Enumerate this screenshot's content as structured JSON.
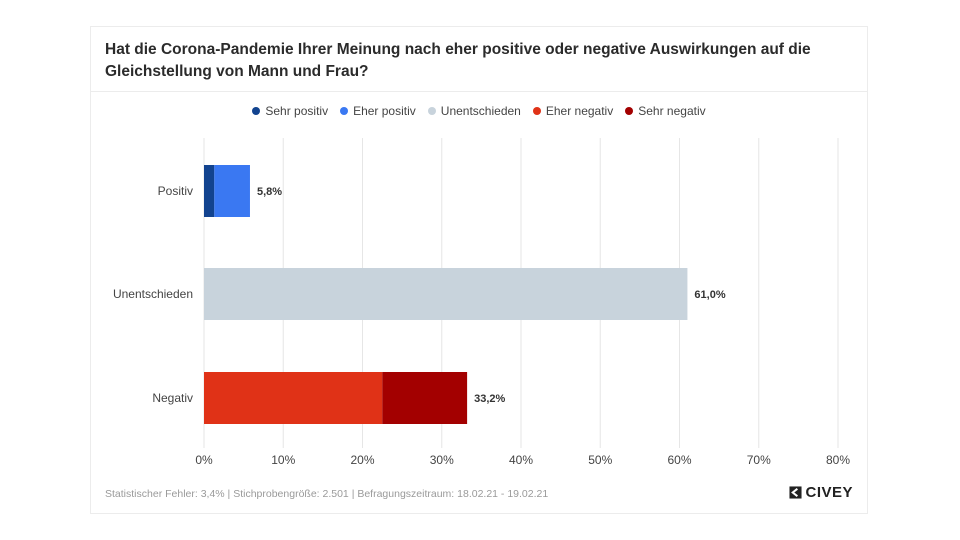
{
  "chart_data": {
    "type": "bar",
    "orientation": "horizontal",
    "stacked": true,
    "title": "Hat die Corona-Pandemie Ihrer Meinung nach eher positive oder negative Auswirkungen auf die Gleichstellung von Mann und Frau?",
    "categories": [
      "Positiv",
      "Unentschieden",
      "Negativ"
    ],
    "series": [
      {
        "name": "Sehr positiv",
        "color": "#12438f",
        "values": [
          1.3,
          0,
          0
        ]
      },
      {
        "name": "Eher positiv",
        "color": "#3a78f2",
        "values": [
          4.5,
          0,
          0
        ]
      },
      {
        "name": "Unentschieden",
        "color": "#c8d3dc",
        "values": [
          0,
          61.0,
          0
        ]
      },
      {
        "name": "Eher negativ",
        "color": "#e03217",
        "values": [
          0,
          0,
          22.5
        ]
      },
      {
        "name": "Sehr negativ",
        "color": "#a30000",
        "values": [
          0,
          0,
          10.7
        ]
      }
    ],
    "totals": [
      "5,8%",
      "61,0%",
      "33,2%"
    ],
    "xlim": [
      0,
      80
    ],
    "xticks": [
      0,
      10,
      20,
      30,
      40,
      50,
      60,
      70,
      80
    ],
    "xtick_labels": [
      "0%",
      "10%",
      "20%",
      "30%",
      "40%",
      "50%",
      "60%",
      "70%",
      "80%"
    ],
    "grid": true,
    "legend_position": "top-center"
  },
  "footer": {
    "note": "Statistischer Fehler: 3,4% | Stichprobengröße: 2.501 | Befragungszeitraum: 18.02.21 - 19.02.21",
    "brand": "CIVEY"
  }
}
